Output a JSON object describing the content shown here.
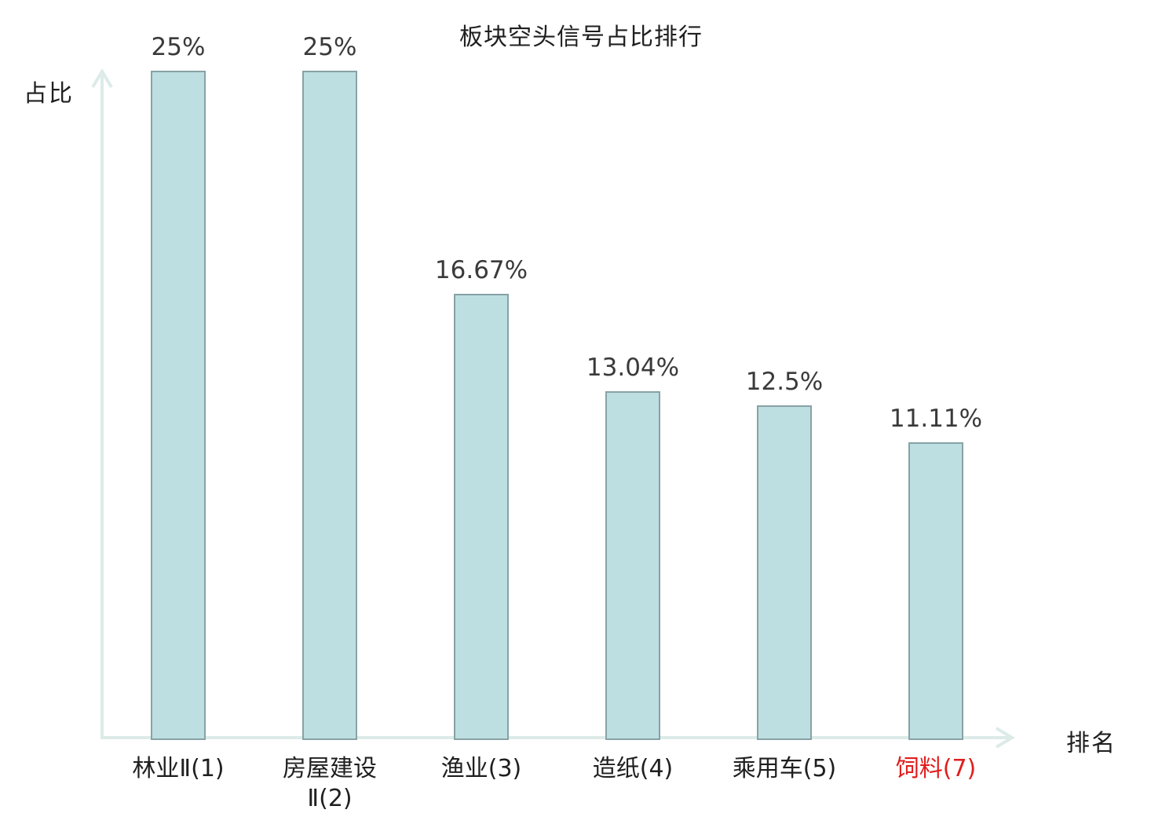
{
  "chart_data": {
    "type": "bar",
    "title": "板块空头信号占比排行",
    "xlabel": "排名",
    "ylabel": "占比",
    "categories": [
      "林业Ⅱ(1)",
      "房屋建设Ⅱ(2)",
      "渔业(3)",
      "造纸(4)",
      "乘用车(5)",
      "饲料(7)"
    ],
    "values": [
      25,
      25,
      16.67,
      13.04,
      12.5,
      11.11
    ],
    "value_labels": [
      "25%",
      "25%",
      "16.67%",
      "13.04%",
      "12.5%",
      "11.11%"
    ],
    "highlighted_category_index": 5,
    "ylim": [
      0,
      25
    ],
    "grid": false,
    "legend": false,
    "colors": {
      "bar_fill": "#bedfe2",
      "bar_border": "#87a2a5",
      "axis": "#dcebe8",
      "value_text": "#3a3a3a",
      "category_text": "#1f1f1f",
      "highlight": "#e11d1d",
      "background": "#ffffff"
    }
  }
}
